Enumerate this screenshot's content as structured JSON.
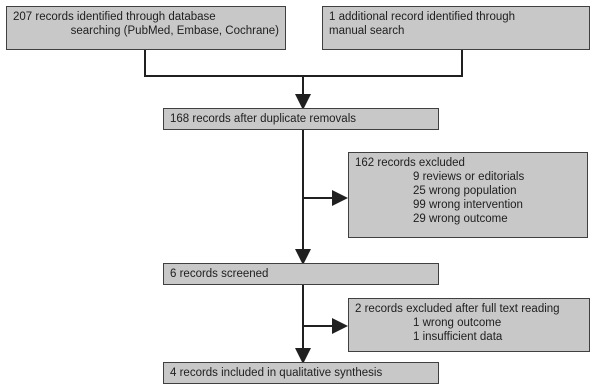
{
  "flow": {
    "identified_db": {
      "line1": "207 records identified through database",
      "line2": "searching (PubMed, Embase, Cochrane)"
    },
    "identified_manual": {
      "line1": "1 additional record identified through",
      "line2": "manual search"
    },
    "after_duplicates": "168 records after duplicate removals",
    "excluded_1": {
      "title": "162 records excluded",
      "reasons": [
        "9 reviews or editorials",
        "25 wrong population",
        "99 wrong intervention",
        "29 wrong outcome"
      ]
    },
    "screened": "6 records screened",
    "excluded_2": {
      "title": "2 records excluded after full text reading",
      "reasons": [
        "1 wrong outcome",
        "1 insufficient data"
      ]
    },
    "included": "4 records included in qualitative synthesis"
  },
  "colors": {
    "box_fill": "#c8c8c8",
    "box_border": "#404040",
    "line": "#202020",
    "text": "#202020"
  }
}
